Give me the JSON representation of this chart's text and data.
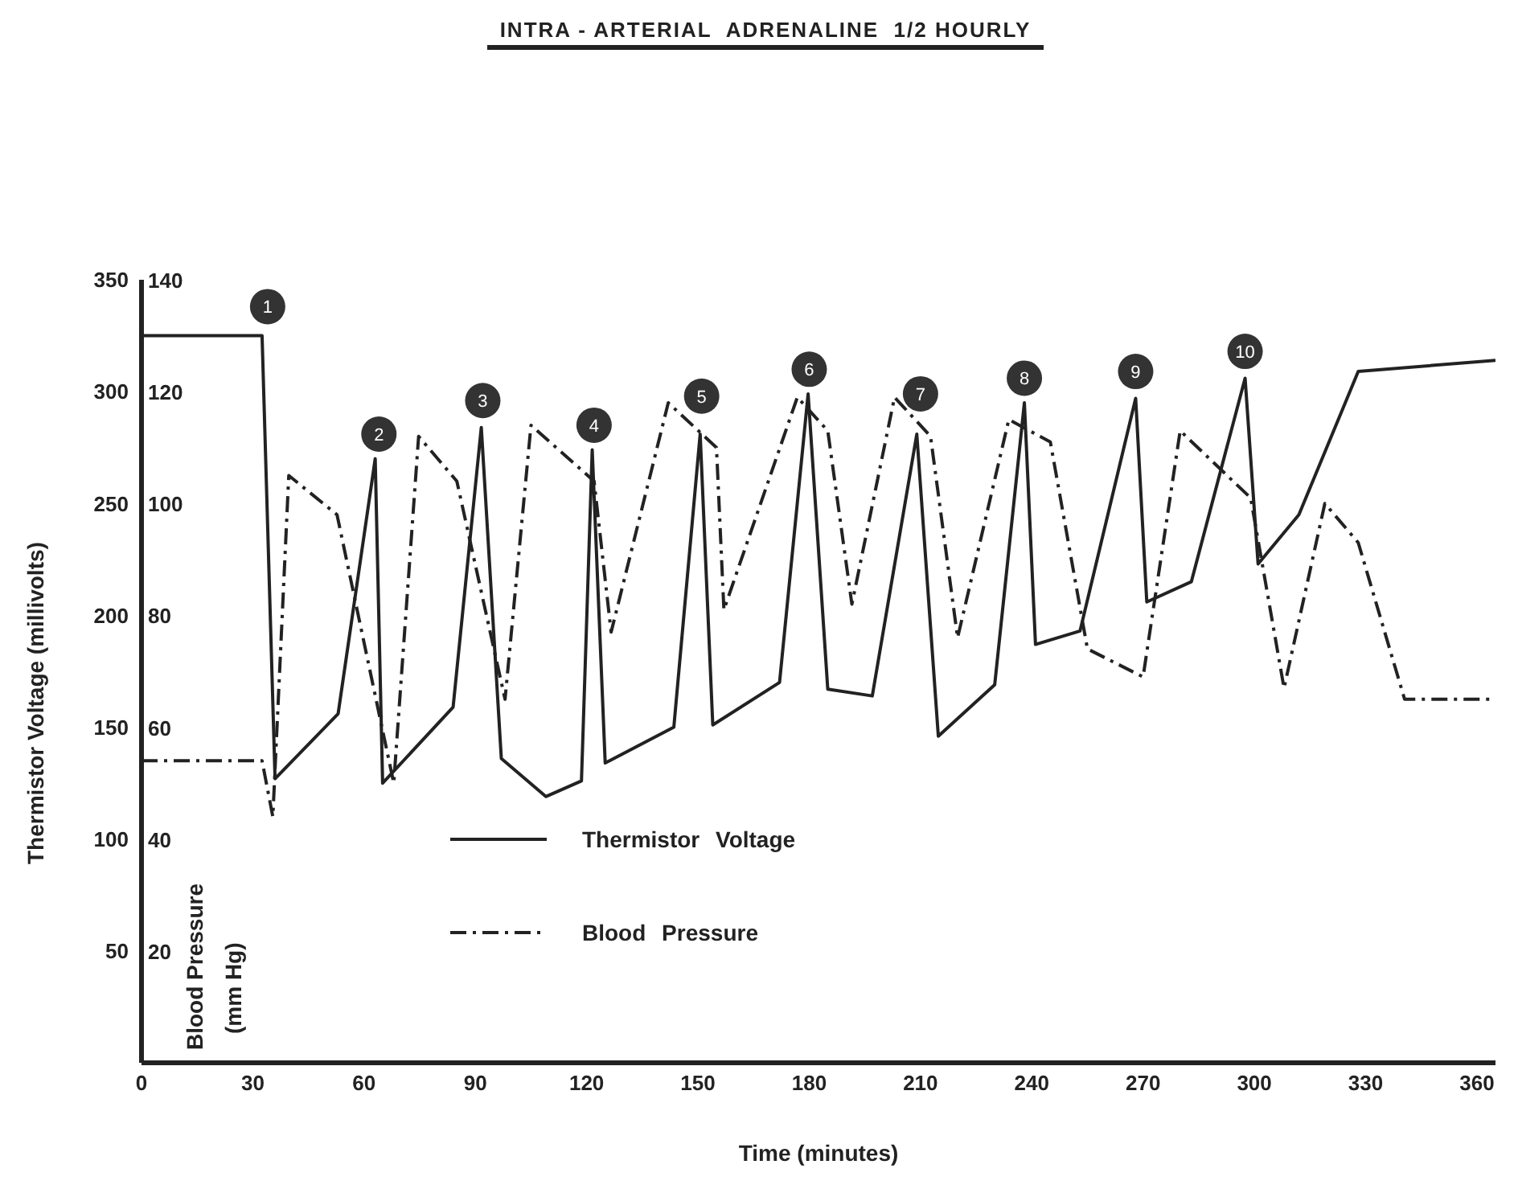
{
  "chart_data": {
    "type": "line",
    "title": "INTRA - ARTERIAL  ADRENALINE  1/2 HOURLY",
    "xlabel": "Time (minutes)",
    "ylabel": "Thermistor Voltage (millivolts)",
    "y2label": "Blood Pressure (mm Hg)",
    "xlim": [
      0,
      365
    ],
    "xticks": [
      0,
      30,
      60,
      90,
      120,
      150,
      180,
      210,
      240,
      270,
      300,
      330,
      360
    ],
    "ylim": [
      0,
      350
    ],
    "yticks": [
      50,
      100,
      150,
      200,
      250,
      300,
      350
    ],
    "y2lim": [
      0,
      140
    ],
    "y2ticks": [
      20,
      40,
      60,
      80,
      100,
      120,
      140
    ],
    "series": [
      {
        "name": "Thermistor Voltage",
        "color": "#222222",
        "line_style": "solid",
        "x": [
          0,
          32.5,
          36,
          53,
          63,
          65,
          84,
          91.6,
          97,
          109,
          118.6,
          121.5,
          125,
          143.5,
          150.6,
          154,
          172,
          179.7,
          185,
          197,
          209,
          214.8,
          230,
          238,
          241,
          253,
          268,
          271,
          283,
          297.5,
          301,
          312,
          328,
          365
        ],
        "values": [
          325,
          325,
          127,
          156,
          270,
          125,
          159,
          284,
          136,
          119,
          126,
          274,
          134,
          150,
          281,
          151,
          170,
          299,
          167,
          164,
          281,
          146,
          169,
          295,
          187,
          193,
          297,
          206,
          215,
          306,
          223,
          245,
          309,
          314
        ]
      },
      {
        "name": "Blood Pressure",
        "color": "#222222",
        "line_style": "dashdot",
        "axis": "y2",
        "x": [
          0,
          32.5,
          35.4,
          39.7,
          52.7,
          68,
          74.7,
          85,
          98,
          105,
          122,
          126.6,
          142,
          155,
          157,
          176.8,
          185,
          191.5,
          203,
          212.7,
          220,
          233.8,
          245,
          255,
          270,
          280,
          299,
          308,
          319,
          328,
          340.5,
          364.5
        ],
        "values": [
          54,
          54,
          44,
          105,
          98,
          50,
          112,
          104,
          65,
          114,
          104,
          77,
          118,
          110,
          81,
          119,
          113,
          82,
          119,
          112,
          76,
          115,
          111,
          74,
          69,
          113,
          101,
          67,
          100,
          93,
          65,
          65
        ]
      }
    ],
    "annotations": [
      {
        "text": "1",
        "x": 34,
        "y": 338
      },
      {
        "text": "2",
        "x": 64,
        "y": 281
      },
      {
        "text": "3",
        "x": 92,
        "y": 296
      },
      {
        "text": "4",
        "x": 122,
        "y": 285
      },
      {
        "text": "5",
        "x": 151,
        "y": 298
      },
      {
        "text": "6",
        "x": 180,
        "y": 310
      },
      {
        "text": "7",
        "x": 210,
        "y": 299
      },
      {
        "text": "8",
        "x": 238,
        "y": 306
      },
      {
        "text": "9",
        "x": 268,
        "y": 309
      },
      {
        "text": "10",
        "x": 297.5,
        "y": 318
      }
    ],
    "legend": "bottom",
    "grid": false
  }
}
